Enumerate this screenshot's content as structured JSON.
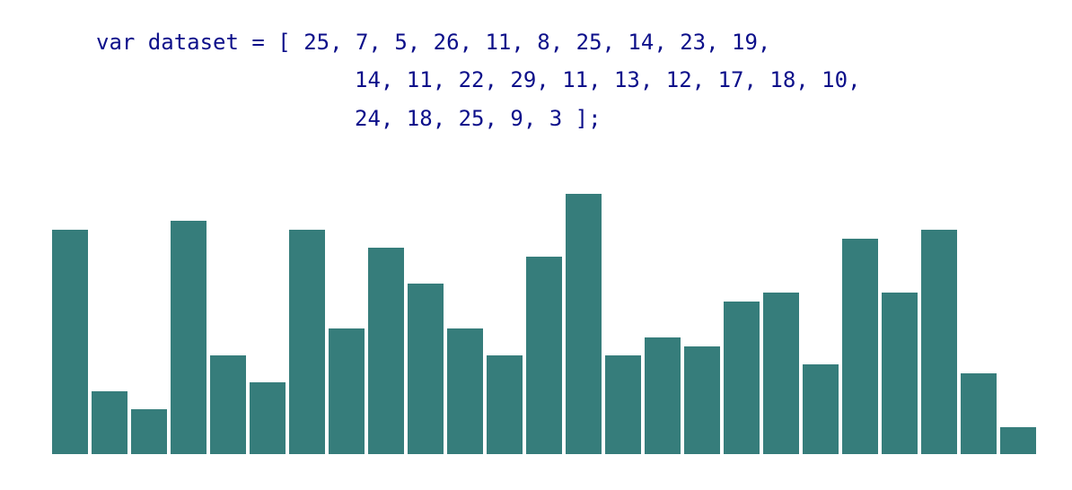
{
  "code": {
    "lines": [
      "var dataset = [ 25, 7, 5, 26, 11, 8, 25, 14, 23, 19,",
      "14, 11, 22, 29, 11, 13, 12, 17, 18, 10,",
      "24, 18, 25, 9, 3 ];"
    ]
  },
  "chart_data": {
    "type": "bar",
    "values": [
      25,
      7,
      5,
      26,
      11,
      8,
      25,
      14,
      23,
      19,
      14,
      11,
      22,
      29,
      11,
      13,
      12,
      17,
      18,
      10,
      24,
      18,
      25,
      9,
      3
    ],
    "title": "",
    "xlabel": "",
    "ylabel": "",
    "grid": false,
    "bar_color": "#367d7b"
  }
}
